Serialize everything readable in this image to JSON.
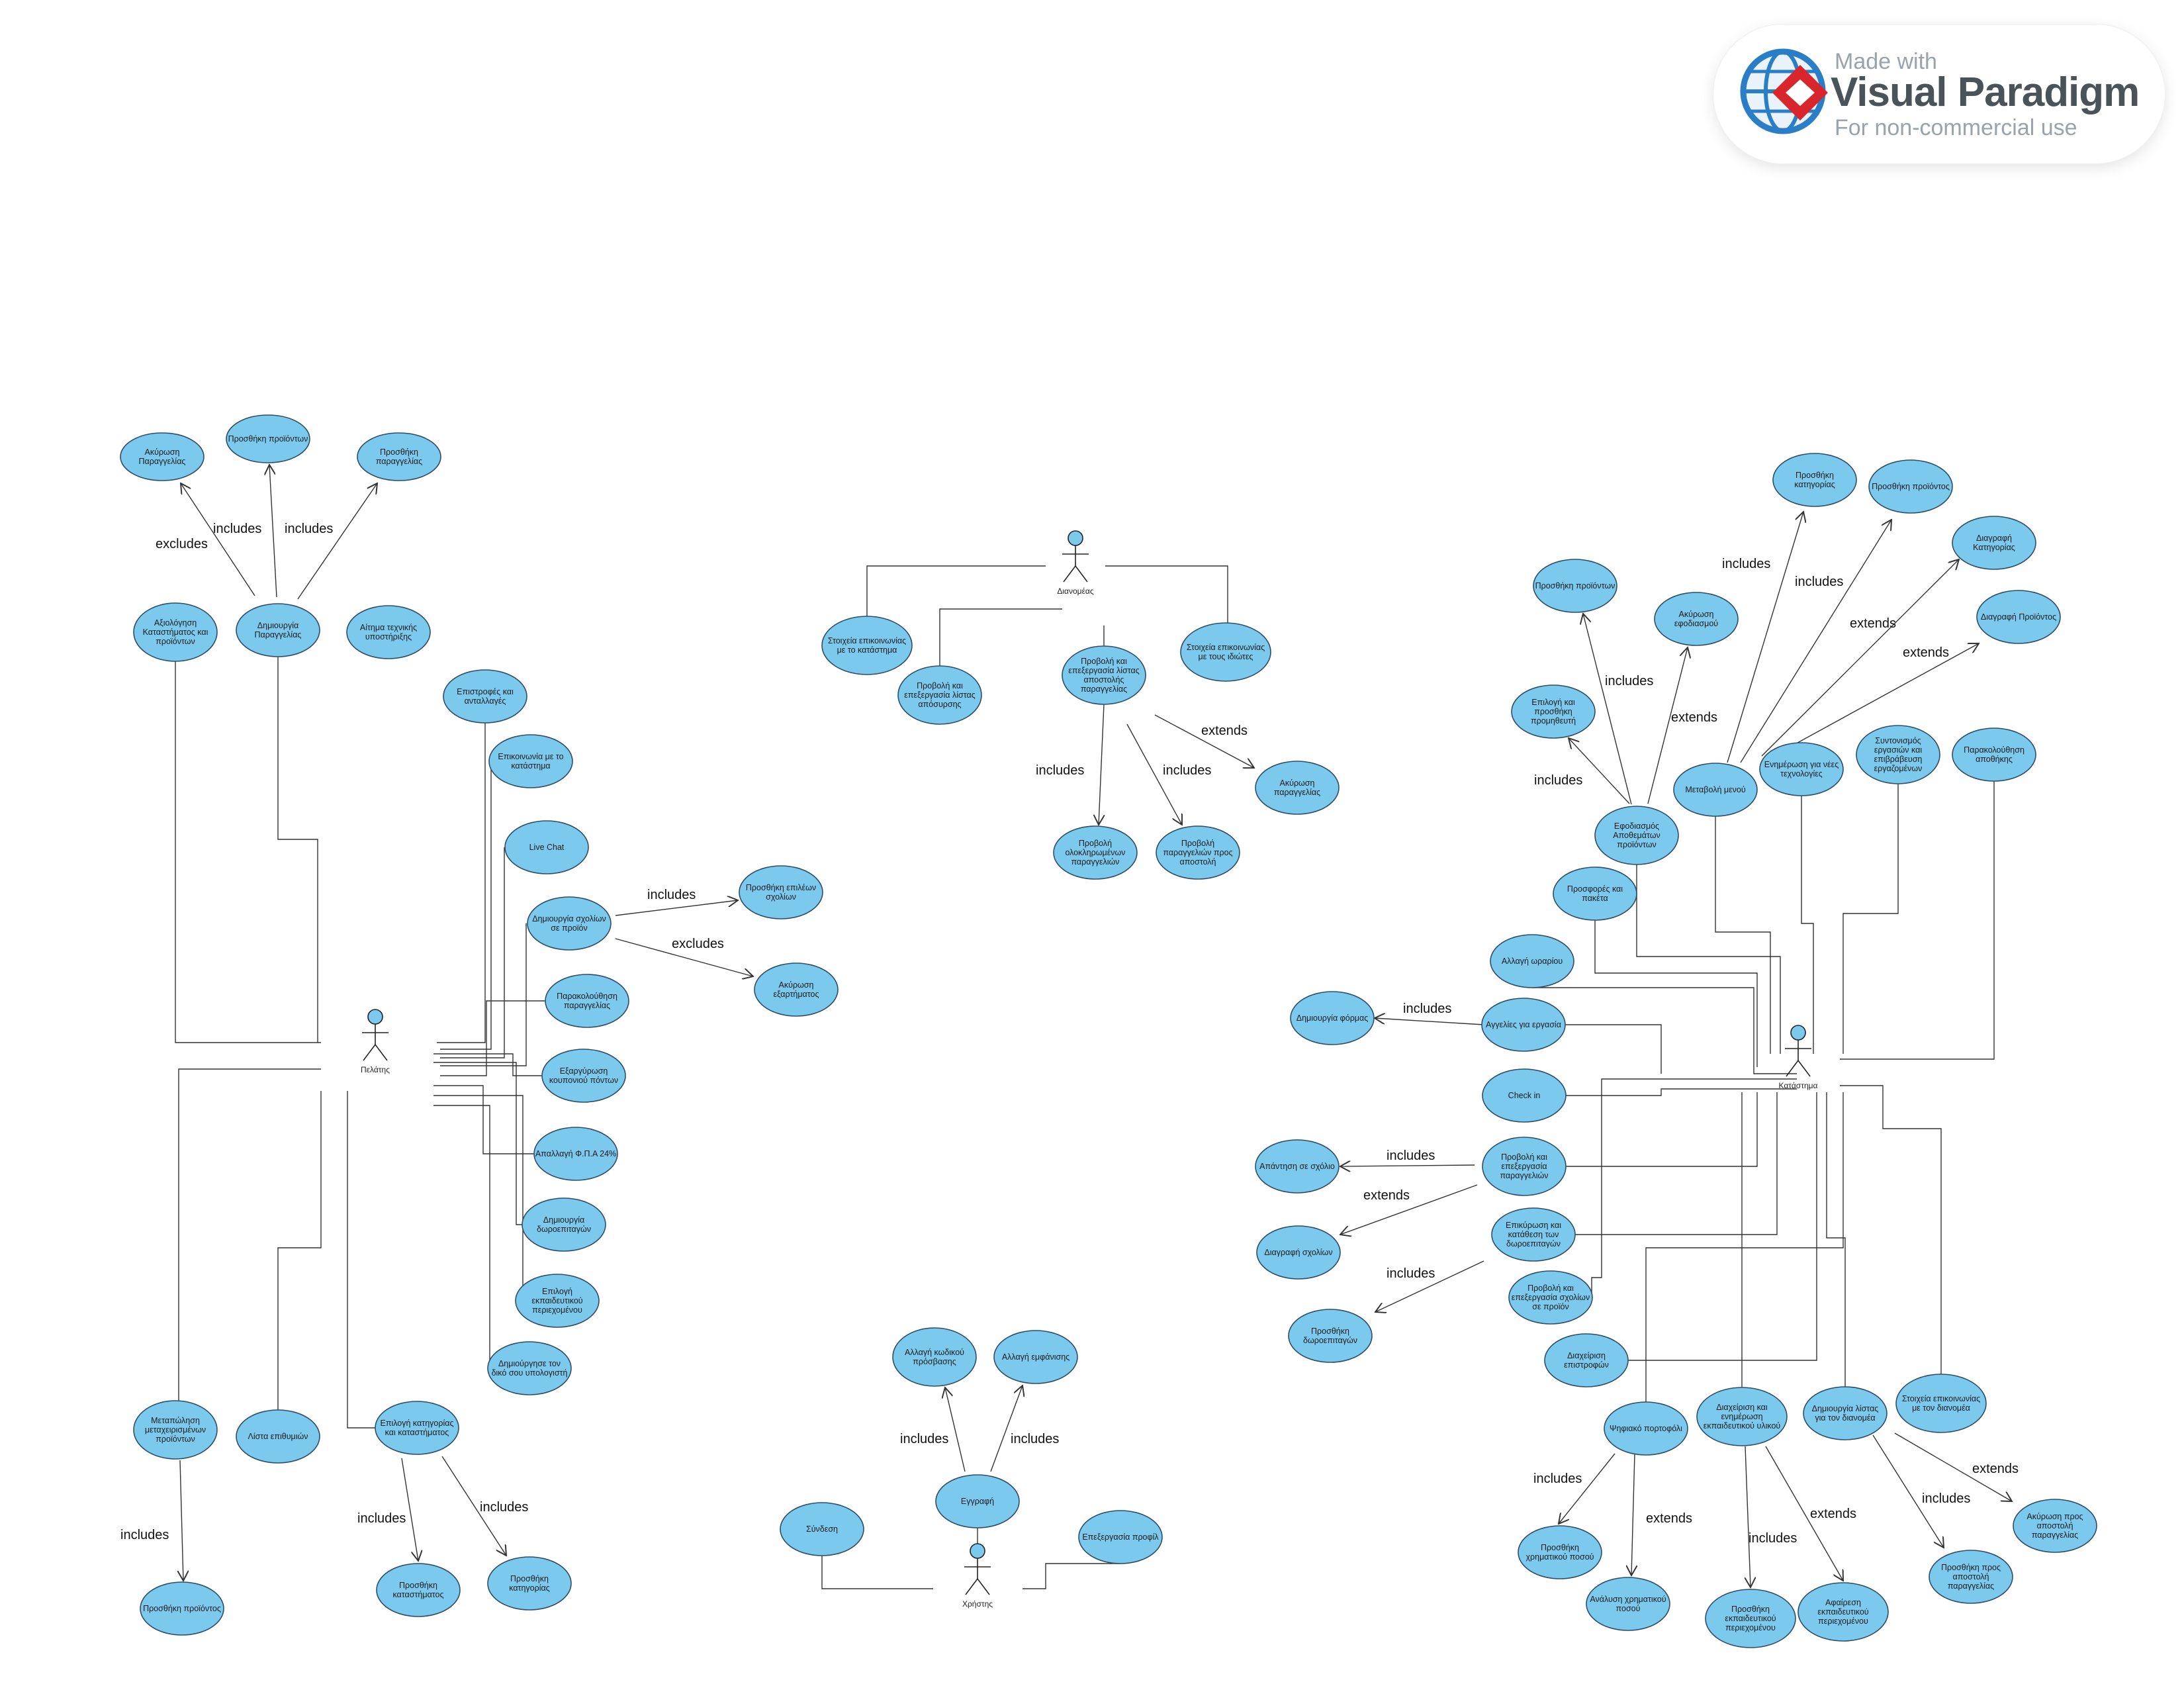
{
  "watermark": {
    "line1": "Made with",
    "line2": "Visual Paradigm",
    "line3": "For non-commercial use",
    "colors": {
      "globe": "#2a7ec7",
      "diamond": "#d8262d",
      "text": "#4a5358",
      "subtext": "#9aa3a9"
    }
  },
  "colors": {
    "use_case_fill": "#7cc9ee",
    "use_case_stroke": "#2f4e66",
    "actor_fill": "#7cc9ee",
    "line": "#333333"
  },
  "actors": {
    "pelatis": "Πελάτης",
    "dianomeas": "Διανομέας",
    "xristis": "Χρήστης",
    "katastima": "Κατάστημα"
  },
  "use_cases": {
    "p_akyrosi_parag": [
      "Ακύρωση",
      "Παραγγελίας"
    ],
    "p_prosthiki_proionton_top": [
      "Προσθήκη προϊόντων"
    ],
    "p_prosthiki_parag": [
      "Προσθήκη",
      "παραγγελίας"
    ],
    "p_axiologisi": [
      "Αξιολόγηση",
      "Καταστήματος και",
      "προϊόντων"
    ],
    "p_dimiourgia_parag": [
      "Δημιουργία",
      "Παραγγελίας"
    ],
    "p_aitima": [
      "Αίτημα τεχνικής",
      "υποστήριξης"
    ],
    "p_epistrofes": [
      "Επιστροφές και",
      "ανταλλαγές"
    ],
    "p_epikoinonia": [
      "Επικοινωνία με το",
      "κατάστημα"
    ],
    "p_livechat": [
      "Live Chat"
    ],
    "p_dimiourgia_sxolion": [
      "Δημιουργία σχολίων",
      "σε προϊόν"
    ],
    "p_prosthiki_epilekton": [
      "Προσθήκη επιλέων",
      "σχολίων"
    ],
    "p_akyrosi_exartimatos": [
      "Ακύρωση",
      "εξαρτήματος"
    ],
    "p_parakolouthisi": [
      "Παρακολούθηση",
      "παραγγελίας"
    ],
    "p_exargyrosi": [
      "Εξαργύρωση",
      "κουπονιού πόντων"
    ],
    "p_apallagi": [
      "Απαλλαγή Φ.Π.Α 24%"
    ],
    "p_dimiourgia_doro": [
      "Δημιουργία",
      "δωροεπιταγών"
    ],
    "p_epilogi_ekp": [
      "Επιλογή",
      "εκπαιδευτικού",
      "περιεχομένου"
    ],
    "p_dimiourgia_ypologisti": [
      "Δημιούργησε τον",
      "δικό σου υπολογιστή"
    ],
    "p_metapolisi": [
      "Μεταπώληση",
      "μεταχειρισμένων",
      "προϊόντων"
    ],
    "p_lista_epithymion": [
      "Λίστα επιθυμιών"
    ],
    "p_epilogi_kat": [
      "Επιλογή κατηγορίας",
      "και καταστήματος"
    ],
    "p_prosthiki_proiontos_bottom": [
      "Προσθήκη προϊόντος"
    ],
    "p_prosthiki_katastimatos": [
      "Προσθήκη",
      "καταστήματος"
    ],
    "p_prosthiki_katigorias": [
      "Προσθήκη",
      "κατηγορίας"
    ],
    "d_stoixeia_katastima": [
      "Στοιχεία επικοινωνίας",
      "με το κατάστημα"
    ],
    "d_provoli_apoxyrosis": [
      "Προβολή και",
      "επεξεργασία λίστας",
      "απόσυρσης"
    ],
    "d_provoli_apostolis": [
      "Προβολή και",
      "επεξεργασία λίστας",
      "αποστολής",
      "παραγγελίας"
    ],
    "d_stoixeia_idiotes": [
      "Στοιχεία επικοινωνίας",
      "με τους ιδιώτες"
    ],
    "d_akyrosi_parag": [
      "Ακύρωση",
      "παραγγελίας"
    ],
    "d_provoli_oloklir": [
      "Προβολή",
      "ολοκληρωμένων",
      "παραγγελιών"
    ],
    "d_provoli_pros_apostoli": [
      "Προβολή",
      "παραγγελιών προς",
      "αποστολή"
    ],
    "x_allagi_kodikou": [
      "Αλλαγή κωδικού",
      "πρόσβασης"
    ],
    "x_allagi_emfanisis": [
      "Αλλαγή εμφάνισης"
    ],
    "x_eggrafi": [
      "Εγγραφή"
    ],
    "x_syndesi": [
      "Σύνδεση"
    ],
    "x_epexergasia_profil": [
      "Επεξεργασία προφίλ"
    ],
    "k_prosthiki_katigorias": [
      "Προσθήκη",
      "κατηγορίας"
    ],
    "k_prosthiki_proiontos": [
      "Προσθήκη προϊόντος"
    ],
    "k_diagrafi_katigorias": [
      "Διαγραφή",
      "Κατηγορίας"
    ],
    "k_prosthiki_proionton": [
      "Προσθήκη προϊόντων"
    ],
    "k_akyrosi_efodiasmou": [
      "Ακύρωση",
      "εφοδιασμού"
    ],
    "k_diagrafi_proiontos": [
      "Διαγραφή Προϊόντος"
    ],
    "k_epilogi_promitheuti": [
      "Επιλογή και",
      "προσθήκη",
      "προμηθευτή"
    ],
    "k_metavoli_menou": [
      "Μεταβολή μενού"
    ],
    "k_enimerosi_tex": [
      "Ενημέρωση για νέες",
      "τεχνολογίες"
    ],
    "k_syntonismos": [
      "Συντονισμός",
      "εργασιών και",
      "επιβράβευση",
      "εργαζομένων"
    ],
    "k_parakolouthisi_apothikis": [
      "Παρακολούθηση",
      "αποθήκης"
    ],
    "k_efodiasmos": [
      "Εφοδιασμός",
      "Αποθεμάτων",
      "προϊόντων"
    ],
    "k_prosfores": [
      "Προσφορές και",
      "πακέτα"
    ],
    "k_allagi_orariou": [
      "Αλλαγή ωραρίου"
    ],
    "k_aggelies": [
      "Αγγελίες για εργασία"
    ],
    "k_dimiourgia_formas": [
      "Δημιουργία φόρμας"
    ],
    "k_checkin": [
      "Check in"
    ],
    "k_provoli_parag": [
      "Προβολή και",
      "επεξεργασία",
      "παραγγελιών"
    ],
    "k_apantisi_sxolio": [
      "Απάντηση σε σχόλιο"
    ],
    "k_diagrafi_sxolion": [
      "Διαγραφή σχολίων"
    ],
    "k_epikyrosi_doro": [
      "Επικύρωση και",
      "κατάθεση των",
      "δωροεπιταγών"
    ],
    "k_provoli_sxolion": [
      "Προβολή και",
      "επεξεργασία σχολίων",
      "σε προϊόν"
    ],
    "k_prosthiki_doro": [
      "Προσθήκη",
      "δωροεπιταγών"
    ],
    "k_diaxeirisi_epistrofon": [
      "Διαχείριση",
      "επιστροφών"
    ],
    "k_psifiako_portofoli": [
      "Ψηφιακό πορτοφόλι"
    ],
    "k_diaxeirisi_ekp": [
      "Διαχείριση και",
      "ενημέρωση",
      "εκπαιδευτικού υλικού"
    ],
    "k_dimiourgia_listas": [
      "Δημιουργία λίστας",
      "για τον διανομέα"
    ],
    "k_stoixeia_dianomea": [
      "Στοιχεία επικοινωνίας",
      "με τον διανομέα"
    ],
    "k_prosthiki_xrim": [
      "Προσθήκη",
      "χρηματικού ποσού"
    ],
    "k_analysi_xrim": [
      "Ανάλυση χρηματικού",
      "ποσού"
    ],
    "k_prosthiki_ekp": [
      "Προσθήκη",
      "εκπαιδευτικού",
      "περιεχομένου"
    ],
    "k_afairesi_ekp": [
      "Αφαίρεση",
      "εκπαιδευτικού",
      "περιεχομένου"
    ],
    "k_prosthiki_apostoli": [
      "Προσθήκη προς",
      "αποστολή",
      "παραγγελίας"
    ],
    "k_akyrosi_apostoli": [
      "Ακύρωση προς",
      "αποστολή",
      "παραγγελίας"
    ]
  },
  "edge_labels": {
    "includes": "includes",
    "excludes": "excludes",
    "extends": "extends"
  }
}
